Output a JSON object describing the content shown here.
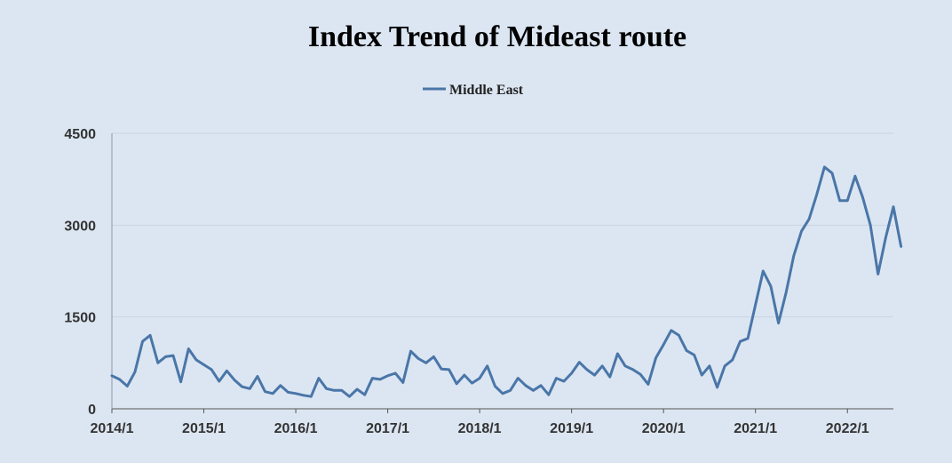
{
  "chart_data": {
    "type": "line",
    "title": "Index Trend of Mideast route",
    "xlabel": "",
    "ylabel": "",
    "legend_position": "top-center",
    "grid": true,
    "ylim": [
      0,
      4500
    ],
    "yticks": [
      "0",
      "1500",
      "3000",
      "4500"
    ],
    "xticks": [
      "2014/1",
      "2015/1",
      "2016/1",
      "2017/1",
      "2018/1",
      "2019/1",
      "2020/1",
      "2021/1",
      "2022/1"
    ],
    "x_range": [
      "2014/1",
      "2022/7"
    ],
    "colors": {
      "line": "#4a76a8",
      "grid": "#c9d4e2",
      "background": "#dce6f2"
    },
    "series": [
      {
        "name": "Middle East",
        "points": [
          [
            "2014/1",
            540
          ],
          [
            "2014/2",
            480
          ],
          [
            "2014/3",
            370
          ],
          [
            "2014/4",
            600
          ],
          [
            "2014/5",
            1100
          ],
          [
            "2014/6",
            1200
          ],
          [
            "2014/7",
            750
          ],
          [
            "2014/8",
            850
          ],
          [
            "2014/9",
            870
          ],
          [
            "2014/10",
            440
          ],
          [
            "2014/11",
            980
          ],
          [
            "2014/12",
            800
          ],
          [
            "2015/1",
            720
          ],
          [
            "2015/2",
            640
          ],
          [
            "2015/3",
            450
          ],
          [
            "2015/4",
            620
          ],
          [
            "2015/5",
            470
          ],
          [
            "2015/6",
            360
          ],
          [
            "2015/7",
            330
          ],
          [
            "2015/8",
            530
          ],
          [
            "2015/9",
            280
          ],
          [
            "2015/10",
            250
          ],
          [
            "2015/11",
            380
          ],
          [
            "2015/12",
            270
          ],
          [
            "2016/1",
            250
          ],
          [
            "2016/2",
            220
          ],
          [
            "2016/3",
            200
          ],
          [
            "2016/4",
            500
          ],
          [
            "2016/5",
            330
          ],
          [
            "2016/6",
            300
          ],
          [
            "2016/7",
            300
          ],
          [
            "2016/8",
            200
          ],
          [
            "2016/9",
            320
          ],
          [
            "2016/10",
            230
          ],
          [
            "2016/11",
            500
          ],
          [
            "2016/12",
            480
          ],
          [
            "2017/1",
            540
          ],
          [
            "2017/2",
            580
          ],
          [
            "2017/3",
            430
          ],
          [
            "2017/4",
            940
          ],
          [
            "2017/5",
            820
          ],
          [
            "2017/6",
            750
          ],
          [
            "2017/7",
            850
          ],
          [
            "2017/8",
            650
          ],
          [
            "2017/9",
            640
          ],
          [
            "2017/10",
            410
          ],
          [
            "2017/11",
            550
          ],
          [
            "2017/12",
            420
          ],
          [
            "2018/1",
            500
          ],
          [
            "2018/2",
            700
          ],
          [
            "2018/3",
            370
          ],
          [
            "2018/4",
            250
          ],
          [
            "2018/5",
            300
          ],
          [
            "2018/6",
            500
          ],
          [
            "2018/7",
            380
          ],
          [
            "2018/8",
            300
          ],
          [
            "2018/9",
            380
          ],
          [
            "2018/10",
            230
          ],
          [
            "2018/11",
            500
          ],
          [
            "2018/12",
            450
          ],
          [
            "2019/1",
            580
          ],
          [
            "2019/2",
            760
          ],
          [
            "2019/3",
            640
          ],
          [
            "2019/4",
            550
          ],
          [
            "2019/5",
            700
          ],
          [
            "2019/6",
            520
          ],
          [
            "2019/7",
            900
          ],
          [
            "2019/8",
            700
          ],
          [
            "2019/9",
            640
          ],
          [
            "2019/10",
            560
          ],
          [
            "2019/11",
            400
          ],
          [
            "2019/12",
            830
          ],
          [
            "2020/1",
            1050
          ],
          [
            "2020/2",
            1280
          ],
          [
            "2020/3",
            1200
          ],
          [
            "2020/4",
            950
          ],
          [
            "2020/5",
            880
          ],
          [
            "2020/6",
            550
          ],
          [
            "2020/7",
            700
          ],
          [
            "2020/8",
            350
          ],
          [
            "2020/9",
            700
          ],
          [
            "2020/10",
            800
          ],
          [
            "2020/11",
            1100
          ],
          [
            "2020/12",
            1150
          ],
          [
            "2021/1",
            1700
          ],
          [
            "2021/2",
            2250
          ],
          [
            "2021/3",
            2000
          ],
          [
            "2021/4",
            1400
          ],
          [
            "2021/5",
            1900
          ],
          [
            "2021/6",
            2500
          ],
          [
            "2021/7",
            2900
          ],
          [
            "2021/8",
            3100
          ],
          [
            "2021/9",
            3500
          ],
          [
            "2021/10",
            3950
          ],
          [
            "2021/11",
            3850
          ],
          [
            "2021/12",
            3400
          ],
          [
            "2022/1",
            3400
          ],
          [
            "2022/2",
            3800
          ],
          [
            "2022/3",
            3450
          ],
          [
            "2022/4",
            3000
          ],
          [
            "2022/5",
            2200
          ],
          [
            "2022/6",
            2800
          ],
          [
            "2022/7",
            3300
          ],
          [
            "2022/8",
            2650
          ]
        ]
      }
    ]
  }
}
